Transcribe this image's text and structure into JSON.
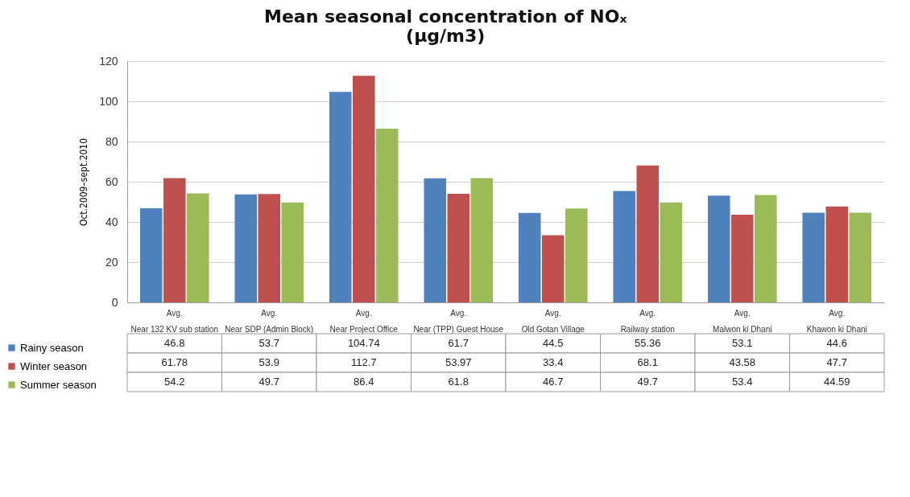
{
  "chart_data": {
    "type": "bar",
    "title": "Mean seasonal concentration of NOₓ\n(µg/m3)",
    "ylabel": "Oct.2009–sept.2010",
    "categories": [
      "Avg.\nNear 132 KV sub station",
      "Avg.\nNear SDP (Admin Block)",
      "Avg.\nNear Project Office",
      "Avg.\nNear (TPP) Guest House",
      "Avg.\nOld Gotan Village",
      "Avg.\nRailway station",
      "Avg.\nMalwon ki Dhani",
      "Avg.\nKhawon ki Dhani"
    ],
    "series": [
      {
        "name": "Rainy season",
        "color": "#4f81bd",
        "values": [
          46.8,
          53.7,
          104.74,
          61.7,
          44.5,
          55.36,
          53.1,
          44.6
        ]
      },
      {
        "name": "Winter season",
        "color": "#c0504d",
        "values": [
          61.78,
          53.9,
          112.7,
          53.97,
          33.4,
          68.1,
          43.58,
          47.7
        ]
      },
      {
        "name": "Summer season",
        "color": "#9bbb59",
        "values": [
          54.2,
          49.7,
          86.4,
          61.8,
          46.7,
          49.7,
          53.4,
          44.59
        ]
      }
    ],
    "ylim": [
      0,
      120
    ],
    "yticks": [
      0,
      20,
      40,
      60,
      80,
      100,
      120
    ],
    "grid": "y",
    "legend": "bottom left",
    "data_labels": true
  }
}
